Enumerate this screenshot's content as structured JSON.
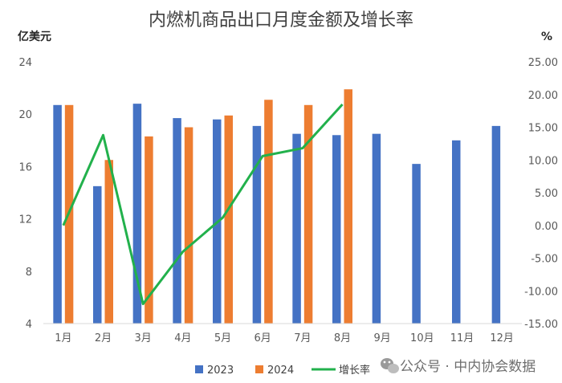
{
  "chart_data": {
    "type": "bar",
    "title": "内燃机商品出口月度金额及增长率",
    "ylabel": "亿美元",
    "y2label": "%",
    "categories": [
      "1月",
      "2月",
      "3月",
      "4月",
      "5月",
      "6月",
      "7月",
      "8月",
      "9月",
      "10月",
      "11月",
      "12月"
    ],
    "ylim": [
      4,
      24
    ],
    "yticks": [
      4,
      8,
      12,
      16,
      20,
      24
    ],
    "y2lim": [
      -15,
      25
    ],
    "y2ticks": [
      "25.00",
      "20.00",
      "15.00",
      "10.00",
      "5.00",
      "0.00",
      "-5.00",
      "-10.00",
      "-15.00"
    ],
    "series": [
      {
        "name": "2023",
        "kind": "bar",
        "color": "#4472C4",
        "values": [
          20.7,
          14.5,
          20.8,
          19.7,
          19.6,
          19.1,
          18.5,
          18.4,
          18.5,
          16.2,
          18.0,
          19.1
        ]
      },
      {
        "name": "2024",
        "kind": "bar",
        "color": "#ED7D31",
        "values": [
          20.7,
          16.5,
          18.3,
          19.0,
          19.9,
          21.1,
          20.7,
          21.9,
          null,
          null,
          null,
          null
        ]
      },
      {
        "name": "增长率",
        "kind": "line",
        "axis": "right",
        "color": "#22B14C",
        "values": [
          0.0,
          13.8,
          -12.0,
          -4.0,
          1.2,
          10.6,
          11.8,
          18.5,
          null,
          null,
          null,
          null
        ]
      }
    ],
    "legend_position": "bottom",
    "grid": false
  },
  "watermark": {
    "icon": "wechat-icon",
    "text": "公众号 · 中内协会数据"
  }
}
